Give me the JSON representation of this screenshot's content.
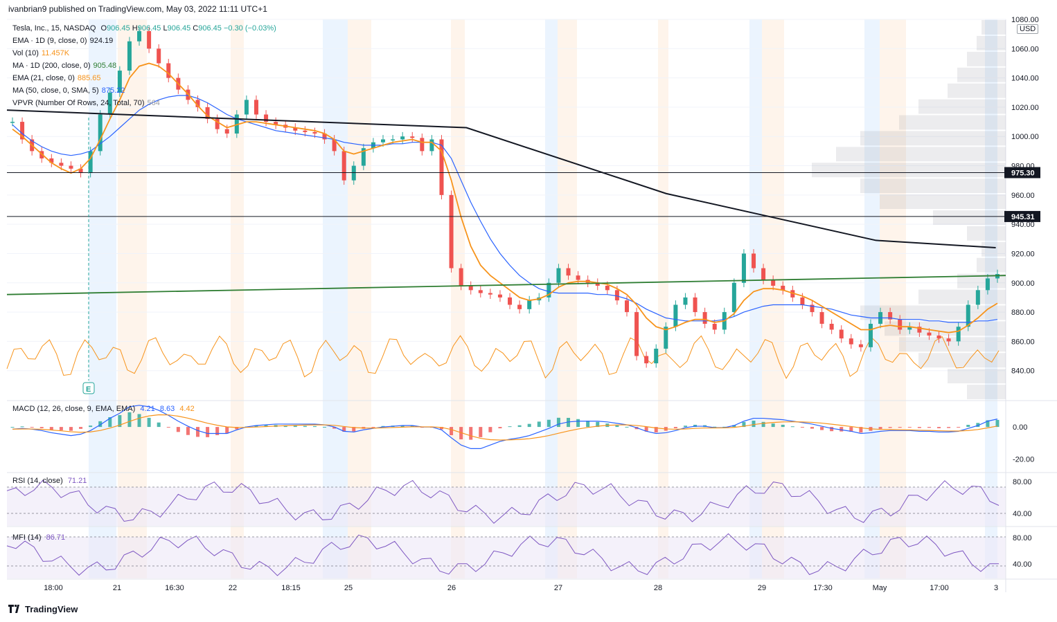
{
  "publisher": "ivanbrian9 published on TradingView.com, May 03, 2022 11:11 UTC+1",
  "footer_brand": "TradingView",
  "currency": "USD",
  "legend": {
    "symbol": "Tesla, Inc., 15, NASDAQ",
    "o_label": "O",
    "o": "906.45",
    "h_label": "H",
    "h": "906.45",
    "l_label": "L",
    "l": "906.45",
    "c_label": "C",
    "c": "906.45",
    "change": "−0.30 (−0.03%)",
    "lines": [
      {
        "name": "EMA · 1D (9, close, 0)",
        "value": "924.19",
        "color": "#131722"
      },
      {
        "name": "Vol (10)",
        "value": "11.457K",
        "color": "#f7931a"
      },
      {
        "name": "MA · 1D (200, close, 0)",
        "value": "905.48",
        "color": "#2e7d32"
      },
      {
        "name": "EMA (21, close, 0)",
        "value": "885.65",
        "color": "#f7931a"
      },
      {
        "name": "MA (50, close, 0, SMA, 5)",
        "value": "875.22",
        "color": "#2962ff"
      },
      {
        "name": "VPVR (Number Of Rows, 24, Total, 70)",
        "value": "564",
        "color": "#9598a1"
      }
    ],
    "macd": {
      "name": "MACD (12, 26, close, 9, EMA, EMA)",
      "v1": "4.21",
      "v2": "8.63",
      "v3": "4.42"
    },
    "rsi": {
      "name": "RSI (14, close)",
      "value": "71.21"
    },
    "mfi": {
      "name": "MFI (14)",
      "value": "86.71"
    }
  },
  "colors": {
    "up": "#26a69a",
    "down": "#ef5350",
    "ema21": "#f7931a",
    "ma50": "#2962ff",
    "ma200": "#2e7d32",
    "trend": "#131722",
    "osc": "#7e57c2"
  },
  "chart_data": {
    "type": "line",
    "x_tick_labels": [
      "18:00",
      "21",
      "16:30",
      "22",
      "18:15",
      "25",
      "26",
      "27",
      "28",
      "29",
      "17:30",
      "May",
      "17:00",
      "3"
    ],
    "price_axis": {
      "min": 820,
      "max": 1080,
      "ticks": [
        "1080.00",
        "1060.00",
        "1040.00",
        "1020.00",
        "1000.00",
        "980.00",
        "960.00",
        "940.00",
        "920.00",
        "900.00",
        "880.00",
        "860.00",
        "840.00"
      ]
    },
    "horizontal_levels": [
      975.3,
      945.31
    ],
    "level_labels": [
      "975.30",
      "945.31"
    ],
    "price_close": [
      1010,
      998,
      990,
      985,
      982,
      980,
      978,
      975,
      990,
      1015,
      1030,
      1045,
      1065,
      1072,
      1060,
      1050,
      1040,
      1032,
      1025,
      1020,
      1012,
      1005,
      1002,
      1015,
      1025,
      1015,
      1010,
      1008,
      1006,
      1004,
      1003,
      1002,
      998,
      990,
      970,
      980,
      992,
      996,
      998,
      998,
      1000,
      999,
      990,
      998,
      960,
      910,
      898,
      895,
      893,
      892,
      890,
      885,
      882,
      888,
      890,
      900,
      910,
      905,
      902,
      900,
      898,
      895,
      888,
      880,
      850,
      845,
      855,
      870,
      885,
      890,
      880,
      872,
      868,
      880,
      900,
      920,
      910,
      902,
      898,
      895,
      890,
      885,
      880,
      872,
      868,
      862,
      858,
      856,
      872,
      880,
      875,
      868,
      870,
      866,
      864,
      862,
      860,
      870,
      885,
      895,
      903,
      906
    ],
    "ema21": [
      1005,
      1000,
      994,
      988,
      982,
      978,
      975,
      978,
      985,
      998,
      1012,
      1025,
      1040,
      1048,
      1050,
      1048,
      1043,
      1036,
      1029,
      1021,
      1014,
      1010,
      1006,
      1008,
      1010,
      1010,
      1009,
      1008,
      1007,
      1006,
      1005,
      1004,
      1002,
      998,
      990,
      988,
      990,
      992,
      994,
      996,
      997,
      998,
      996,
      996,
      990,
      970,
      945,
      925,
      912,
      905,
      900,
      895,
      890,
      888,
      889,
      892,
      897,
      900,
      901,
      901,
      900,
      899,
      896,
      892,
      885,
      876,
      870,
      868,
      870,
      873,
      875,
      875,
      873,
      874,
      879,
      888,
      894,
      896,
      896,
      895,
      893,
      891,
      888,
      884,
      880,
      876,
      872,
      868,
      868,
      870,
      871,
      870,
      870,
      869,
      868,
      867,
      866,
      867,
      871,
      876,
      882,
      886
    ],
    "ma50": [
      1008,
      1002,
      997,
      993,
      990,
      988,
      987,
      988,
      990,
      995,
      1000,
      1006,
      1012,
      1018,
      1022,
      1025,
      1027,
      1028,
      1028,
      1026,
      1023,
      1019,
      1015,
      1012,
      1010,
      1008,
      1006,
      1004,
      1003,
      1002,
      1001,
      1000,
      999,
      998,
      996,
      995,
      994,
      994,
      994,
      995,
      995,
      996,
      996,
      996,
      994,
      985,
      970,
      955,
      942,
      930,
      920,
      912,
      905,
      900,
      896,
      894,
      893,
      893,
      893,
      893,
      892,
      892,
      891,
      889,
      886,
      882,
      879,
      876,
      875,
      874,
      874,
      874,
      874,
      875,
      877,
      880,
      882,
      884,
      885,
      885,
      885,
      885,
      884,
      883,
      882,
      880,
      878,
      877,
      876,
      876,
      876,
      875,
      875,
      875,
      874,
      874,
      873,
      873,
      873,
      874,
      874,
      875
    ],
    "trend_line": [
      [
        0,
        1018
      ],
      [
        0.46,
        1006
      ],
      [
        0.66,
        961
      ],
      [
        0.87,
        929
      ],
      [
        0.99,
        924
      ]
    ],
    "ma200_line": [
      [
        0,
        892
      ],
      [
        1,
        905
      ]
    ],
    "volume_profile_ratio": [
      0.05,
      0.06,
      0.08,
      0.1,
      0.12,
      0.18,
      0.22,
      0.3,
      0.35,
      0.4,
      0.3,
      0.26,
      0.15,
      0.08,
      0.05,
      0.06,
      0.1,
      0.18,
      0.3,
      0.25,
      0.22,
      0.18,
      0.12,
      0.08
    ],
    "macd_axis": {
      "min": -28,
      "max": 16,
      "ticks": [
        "0.00",
        "-20.00"
      ]
    },
    "rsi_axis": {
      "ticks": [
        "80.00",
        "40.00"
      ]
    },
    "mfi_axis": {
      "ticks": [
        "80.00",
        "40.00"
      ]
    }
  }
}
